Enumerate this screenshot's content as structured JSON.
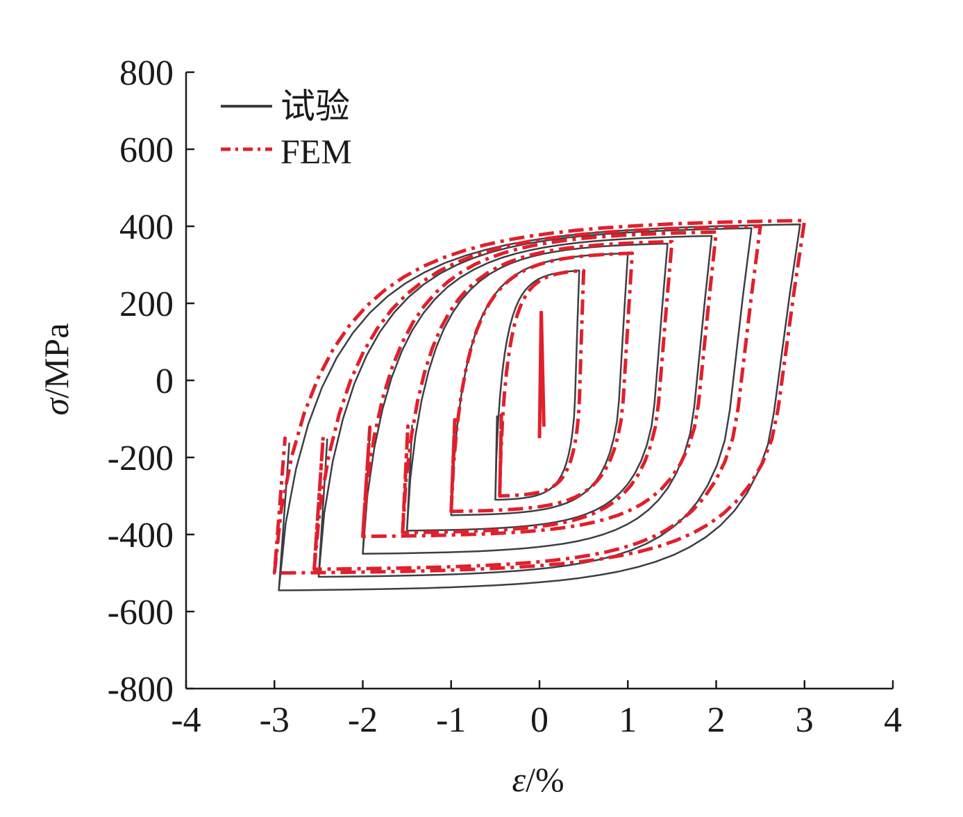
{
  "chart_data": {
    "type": "line",
    "title": "",
    "xlabel": {
      "symbol": "ε",
      "unit": "/%"
    },
    "ylabel": {
      "symbol": "σ",
      "unit": "/MPa"
    },
    "xlim": [
      -4,
      4
    ],
    "ylim": [
      -800,
      800
    ],
    "xticks": [
      -4,
      -3,
      -2,
      -1,
      0,
      1,
      2,
      3,
      4
    ],
    "xtick_labels": [
      "-4",
      "-3",
      "-2",
      "-1",
      "0",
      "1",
      "2",
      "3",
      "4"
    ],
    "yticks": [
      -800,
      -600,
      -400,
      -200,
      0,
      200,
      400,
      600,
      800
    ],
    "ytick_labels": [
      "-800",
      "-600",
      "-400",
      "-200",
      "0",
      "200",
      "400",
      "600",
      "800"
    ],
    "grid": false,
    "legend_position": "top-left",
    "series": [
      {
        "name": "试验",
        "color": "#3a3f45",
        "style": "solid",
        "loops": [
          {
            "eps_min": -0.5,
            "eps_max": 0.45,
            "sig_min": -310,
            "sig_max": 285
          },
          {
            "eps_min": -1.0,
            "eps_max": 1.0,
            "sig_min": -350,
            "sig_max": 330
          },
          {
            "eps_min": -1.5,
            "eps_max": 1.45,
            "sig_min": -390,
            "sig_max": 355
          },
          {
            "eps_min": -2.0,
            "eps_max": 1.95,
            "sig_min": -450,
            "sig_max": 375
          },
          {
            "eps_min": -2.5,
            "eps_max": 2.4,
            "sig_min": -510,
            "sig_max": 395
          },
          {
            "eps_min": -2.95,
            "eps_max": 2.95,
            "sig_min": -545,
            "sig_max": 405
          }
        ]
      },
      {
        "name": "FEM",
        "color": "#e0202c",
        "style": "dashed",
        "loops": [
          {
            "eps_min": -0.45,
            "eps_max": 0.5,
            "sig_min": -300,
            "sig_max": 285
          },
          {
            "eps_min": -1.0,
            "eps_max": 1.05,
            "sig_min": -340,
            "sig_max": 330
          },
          {
            "eps_min": -1.55,
            "eps_max": 1.5,
            "sig_min": -395,
            "sig_max": 360
          },
          {
            "eps_min": -2.0,
            "eps_max": 2.0,
            "sig_min": -405,
            "sig_max": 385
          },
          {
            "eps_min": -2.55,
            "eps_max": 2.5,
            "sig_min": -490,
            "sig_max": 400
          },
          {
            "eps_min": -3.0,
            "eps_max": 3.0,
            "sig_min": -500,
            "sig_max": 415
          }
        ]
      }
    ]
  }
}
